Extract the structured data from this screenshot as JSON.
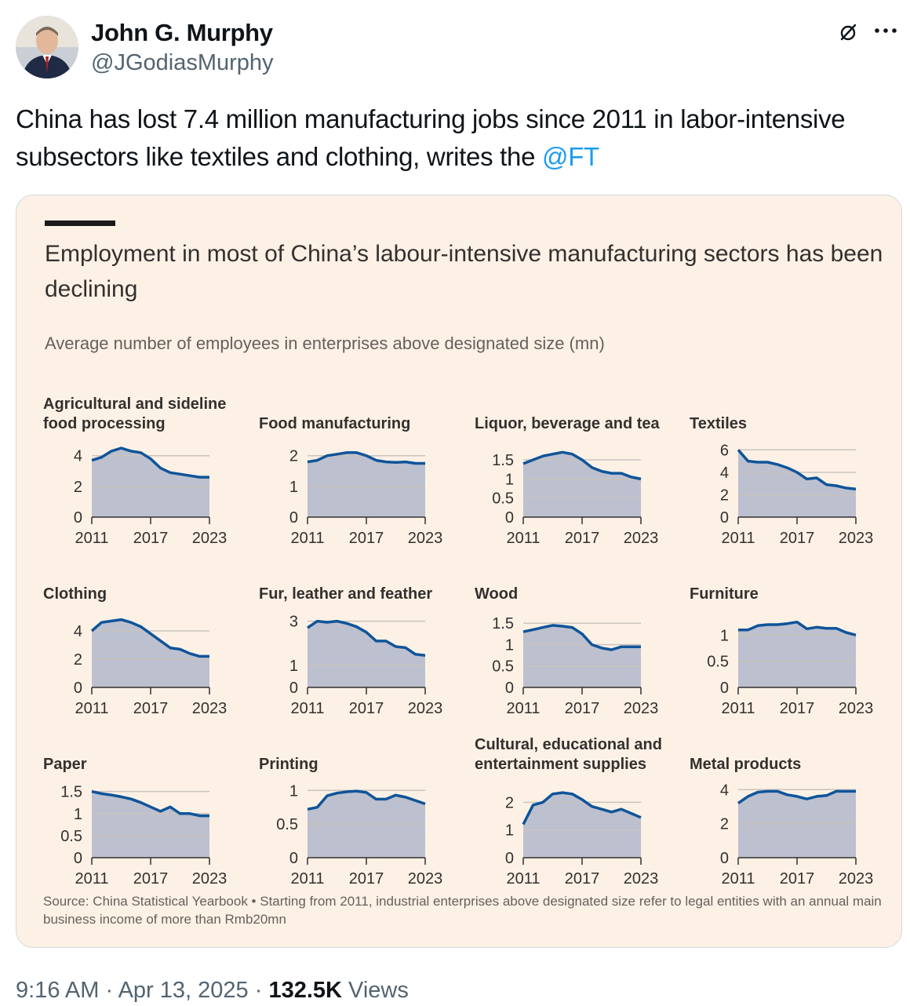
{
  "tweet": {
    "author_name": "John G. Murphy",
    "author_handle": "@JGodiasMurphy",
    "text": "China has lost 7.4 million manufacturing jobs since 2011 in labor-intensive subsectors like textiles and clothing, writes the ",
    "mention": "@FT",
    "time": "9:16 AM",
    "date": "Apr 13, 2025",
    "separator": " · ",
    "views_count": "132.5K",
    "views_label": "Views",
    "icons": [
      "avatar-photo",
      "grok-icon",
      "more-icon"
    ]
  },
  "card": {
    "title": "Employment in most of China’s labour-intensive manufacturing sectors has been declining",
    "subtitle": "Average number of employees in enterprises above designated size (mn)",
    "source": "Source: China Statistical Yearbook • Starting from 2011, industrial enterprises above designated size refer to legal entities with an annual main business income of more than Rmb20mn"
  },
  "colors": {
    "card_bg": "#fdf1e6",
    "area_fill": "#bcc0cf",
    "line": "#0f5499",
    "grid": "#c9c3bd",
    "mention": "#1d9bf0"
  },
  "chart_data": [
    {
      "type": "area",
      "title": "Agricultural and sideline food processing",
      "x": [
        2011,
        2012,
        2013,
        2014,
        2015,
        2016,
        2017,
        2018,
        2019,
        2020,
        2021,
        2022,
        2023
      ],
      "y": [
        3.7,
        3.9,
        4.3,
        4.5,
        4.3,
        4.2,
        3.8,
        3.2,
        2.9,
        2.8,
        2.7,
        2.6,
        2.6
      ],
      "yticks": [
        "0",
        "2",
        "4"
      ],
      "ytick_values": [
        0,
        2,
        4
      ],
      "ylim": [
        0,
        4.6
      ],
      "xticks": [
        "2011",
        "2017",
        "2023"
      ]
    },
    {
      "type": "area",
      "title": "Food manufacturing",
      "x": [
        2011,
        2012,
        2013,
        2014,
        2015,
        2016,
        2017,
        2018,
        2019,
        2020,
        2021,
        2022,
        2023
      ],
      "y": [
        1.8,
        1.85,
        2.0,
        2.05,
        2.1,
        2.1,
        2.0,
        1.85,
        1.8,
        1.78,
        1.8,
        1.75,
        1.75
      ],
      "yticks": [
        "0",
        "1",
        "2"
      ],
      "ytick_values": [
        0,
        1,
        2
      ],
      "ylim": [
        0,
        2.3
      ],
      "xticks": [
        "2011",
        "2017",
        "2023"
      ]
    },
    {
      "type": "area",
      "title": "Liquor, beverage and tea",
      "x": [
        2011,
        2012,
        2013,
        2014,
        2015,
        2016,
        2017,
        2018,
        2019,
        2020,
        2021,
        2022,
        2023
      ],
      "y": [
        1.4,
        1.5,
        1.6,
        1.65,
        1.7,
        1.65,
        1.5,
        1.3,
        1.2,
        1.15,
        1.15,
        1.05,
        1.0
      ],
      "yticks": [
        "0",
        "0.5",
        "1",
        "1.5"
      ],
      "ytick_values": [
        0,
        0.5,
        1,
        1.5
      ],
      "ylim": [
        0,
        1.85
      ],
      "xticks": [
        "2011",
        "2017",
        "2023"
      ]
    },
    {
      "type": "area",
      "title": "Textiles",
      "x": [
        2011,
        2012,
        2013,
        2014,
        2015,
        2016,
        2017,
        2018,
        2019,
        2020,
        2021,
        2022,
        2023
      ],
      "y": [
        6.0,
        5.0,
        4.9,
        4.9,
        4.7,
        4.4,
        4.0,
        3.4,
        3.5,
        2.9,
        2.8,
        2.6,
        2.5
      ],
      "yticks": [
        "0",
        "2",
        "4",
        "6"
      ],
      "ytick_values": [
        0,
        2,
        4,
        6
      ],
      "ylim": [
        0,
        6.3
      ],
      "xticks": [
        "2011",
        "2017",
        "2023"
      ]
    },
    {
      "type": "area",
      "title": "Clothing",
      "x": [
        2011,
        2012,
        2013,
        2014,
        2015,
        2016,
        2017,
        2018,
        2019,
        2020,
        2021,
        2022,
        2023
      ],
      "y": [
        4.0,
        4.6,
        4.7,
        4.8,
        4.6,
        4.3,
        3.8,
        3.3,
        2.8,
        2.7,
        2.4,
        2.2,
        2.2
      ],
      "yticks": [
        "0",
        "2",
        "4"
      ],
      "ytick_values": [
        0,
        2,
        4
      ],
      "ylim": [
        0,
        5.0
      ],
      "xticks": [
        "2011",
        "2017",
        "2023"
      ]
    },
    {
      "type": "area",
      "title": "Fur, leather and feather",
      "x": [
        2011,
        2012,
        2013,
        2014,
        2015,
        2016,
        2017,
        2018,
        2019,
        2020,
        2021,
        2022,
        2023
      ],
      "y": [
        2.7,
        3.0,
        2.95,
        3.0,
        2.9,
        2.75,
        2.5,
        2.1,
        2.1,
        1.85,
        1.8,
        1.5,
        1.45
      ],
      "yticks": [
        "0",
        "1",
        "3"
      ],
      "ytick_values": [
        0,
        1,
        3
      ],
      "ylim": [
        0,
        3.2
      ],
      "xticks": [
        "2011",
        "2017",
        "2023"
      ]
    },
    {
      "type": "area",
      "title": "Wood",
      "x": [
        2011,
        2012,
        2013,
        2014,
        2015,
        2016,
        2017,
        2018,
        2019,
        2020,
        2021,
        2022,
        2023
      ],
      "y": [
        1.3,
        1.35,
        1.4,
        1.45,
        1.43,
        1.4,
        1.25,
        1.0,
        0.92,
        0.88,
        0.95,
        0.95,
        0.95
      ],
      "yticks": [
        "0",
        "0.5",
        "1",
        "1.5"
      ],
      "ytick_values": [
        0,
        0.5,
        1,
        1.5
      ],
      "ylim": [
        0,
        1.65
      ],
      "xticks": [
        "2011",
        "2017",
        "2023"
      ]
    },
    {
      "type": "area",
      "title": "Furniture",
      "x": [
        2011,
        2012,
        2013,
        2014,
        2015,
        2016,
        2017,
        2018,
        2019,
        2020,
        2021,
        2022,
        2023
      ],
      "y": [
        1.1,
        1.1,
        1.18,
        1.2,
        1.2,
        1.22,
        1.25,
        1.12,
        1.15,
        1.13,
        1.13,
        1.05,
        1.0
      ],
      "yticks": [
        "0",
        "0.5",
        "1"
      ],
      "ytick_values": [
        0,
        0.5,
        1
      ],
      "ylim": [
        0,
        1.35
      ],
      "xticks": [
        "2011",
        "2017",
        "2023"
      ]
    },
    {
      "type": "area",
      "title": "Paper",
      "x": [
        2011,
        2012,
        2013,
        2014,
        2015,
        2016,
        2017,
        2018,
        2019,
        2020,
        2021,
        2022,
        2023
      ],
      "y": [
        1.5,
        1.45,
        1.42,
        1.38,
        1.33,
        1.25,
        1.15,
        1.05,
        1.15,
        1.0,
        1.0,
        0.95,
        0.95
      ],
      "yticks": [
        "0",
        "0.5",
        "1",
        "1.5"
      ],
      "ytick_values": [
        0,
        0.5,
        1,
        1.5
      ],
      "ylim": [
        0,
        1.6
      ],
      "xticks": [
        "2011",
        "2017",
        "2023"
      ]
    },
    {
      "type": "area",
      "title": "Printing",
      "x": [
        2011,
        2012,
        2013,
        2014,
        2015,
        2016,
        2017,
        2018,
        2019,
        2020,
        2021,
        2022,
        2023
      ],
      "y": [
        0.72,
        0.75,
        0.92,
        0.96,
        0.98,
        0.99,
        0.97,
        0.87,
        0.87,
        0.93,
        0.9,
        0.85,
        0.8
      ],
      "yticks": [
        "0",
        "0.5",
        "1"
      ],
      "ytick_values": [
        0,
        0.5,
        1
      ],
      "ylim": [
        0,
        1.05
      ],
      "xticks": [
        "2011",
        "2017",
        "2023"
      ]
    },
    {
      "type": "area",
      "title": "Cultural, educational and entertainment supplies",
      "x": [
        2011,
        2012,
        2013,
        2014,
        2015,
        2016,
        2017,
        2018,
        2019,
        2020,
        2021,
        2022,
        2023
      ],
      "y": [
        1.2,
        1.9,
        2.0,
        2.3,
        2.35,
        2.3,
        2.1,
        1.85,
        1.75,
        1.65,
        1.75,
        1.6,
        1.45
      ],
      "yticks": [
        "0",
        "1",
        "2"
      ],
      "ytick_values": [
        0,
        1,
        2
      ],
      "ylim": [
        0,
        2.55
      ],
      "xticks": [
        "2011",
        "2017",
        "2023"
      ]
    },
    {
      "type": "area",
      "title": "Metal products",
      "x": [
        2011,
        2012,
        2013,
        2014,
        2015,
        2016,
        2017,
        2018,
        2019,
        2020,
        2021,
        2022,
        2023
      ],
      "y": [
        3.2,
        3.6,
        3.85,
        3.9,
        3.9,
        3.7,
        3.6,
        3.45,
        3.6,
        3.65,
        3.9,
        3.9,
        3.9
      ],
      "yticks": [
        "0",
        "2",
        "4"
      ],
      "ytick_values": [
        0,
        2,
        4
      ],
      "ylim": [
        0,
        4.15
      ],
      "xticks": [
        "2011",
        "2017",
        "2023"
      ]
    }
  ]
}
